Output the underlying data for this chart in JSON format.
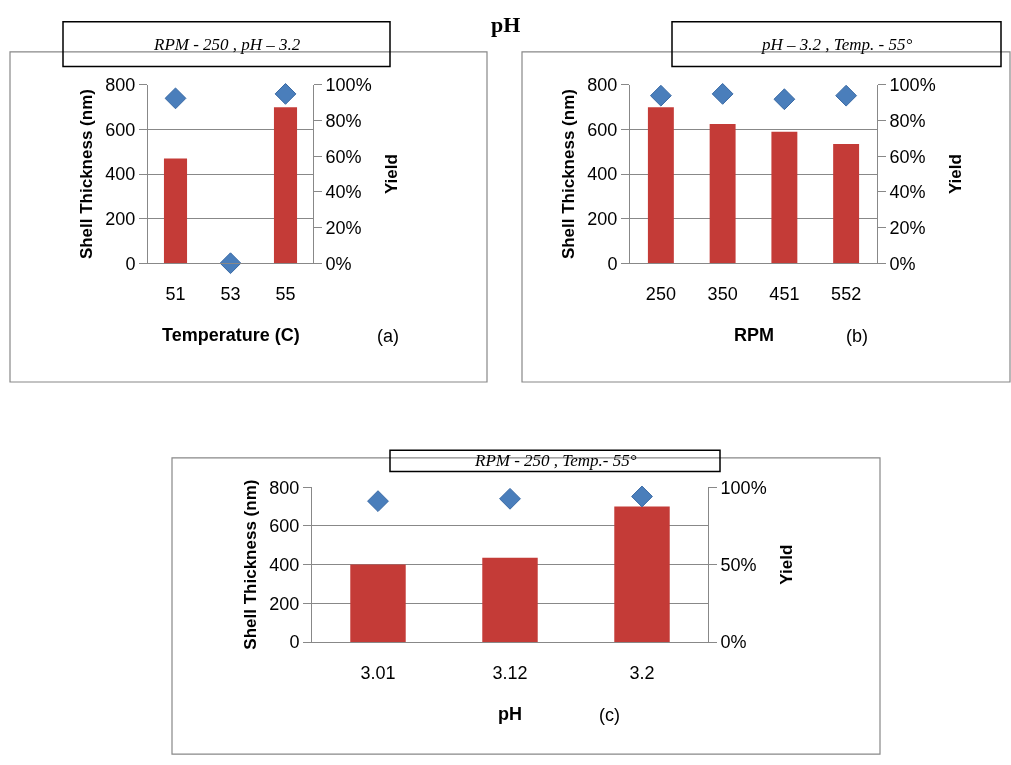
{
  "chart_data": [
    {
      "type": "bar",
      "title": "RPM - 250 , pH – 3.2",
      "xlabel": "Temperature (C)",
      "ylabel": "Shell Thickness (nm)",
      "y2label": "Yield",
      "annotations": [
        "pH",
        "(a)"
      ],
      "categories": [
        "51",
        "53",
        "55"
      ],
      "series": [
        {
          "color": "#c43b37",
          "values": [
            470,
            0,
            700
          ]
        },
        {
          "type": "scatter",
          "axis": "y2",
          "color": "#4a7ebb",
          "values": [
            92.5,
            0,
            95
          ]
        }
      ],
      "marker": "diamond",
      "ylim": [
        0,
        800
      ],
      "yticks": [
        0,
        200,
        400,
        600,
        800
      ],
      "y2lim": [
        0,
        100
      ],
      "y2ticks": [
        {
          "value": 0,
          "label": "0%"
        },
        {
          "value": 20,
          "label": "20%"
        },
        {
          "value": 40,
          "label": "40%"
        },
        {
          "value": 60,
          "label": "60%"
        },
        {
          "value": 80,
          "label": "80%"
        },
        {
          "value": 100,
          "label": "100%"
        }
      ],
      "grid": "y"
    },
    {
      "type": "bar",
      "title": "pH – 3.2 , Temp. - 55°",
      "xlabel": "RPM",
      "ylabel": "Shell Thickness (nm)",
      "y2label": "Yield",
      "annotations": [
        "(b)"
      ],
      "categories": [
        "250",
        "350",
        "451",
        "552"
      ],
      "series": [
        {
          "color": "#c43b37",
          "values": [
            700,
            625,
            590,
            535
          ]
        },
        {
          "type": "scatter",
          "axis": "y2",
          "color": "#4a7ebb",
          "values": [
            94,
            95,
            92,
            94
          ]
        }
      ],
      "marker": "diamond",
      "ylim": [
        0,
        800
      ],
      "yticks": [
        0,
        200,
        400,
        600,
        800
      ],
      "y2lim": [
        0,
        100
      ],
      "y2ticks": [
        {
          "value": 0,
          "label": "0%"
        },
        {
          "value": 20,
          "label": "20%"
        },
        {
          "value": 40,
          "label": "40%"
        },
        {
          "value": 60,
          "label": "60%"
        },
        {
          "value": 80,
          "label": "80%"
        },
        {
          "value": 100,
          "label": "100%"
        }
      ],
      "grid": "y"
    },
    {
      "type": "bar",
      "title": "RPM - 250 , Temp.- 55°",
      "xlabel": "pH",
      "ylabel": "Shell Thickness (nm)",
      "y2label": "Yield",
      "annotations": [
        "(c)"
      ],
      "categories": [
        "3.01",
        "3.12",
        "3.2"
      ],
      "series": [
        {
          "color": "#c43b37",
          "values": [
            400,
            435,
            700
          ]
        },
        {
          "type": "scatter",
          "axis": "y2",
          "color": "#4a7ebb",
          "values": [
            91,
            92.5,
            94
          ]
        }
      ],
      "marker": "diamond",
      "ylim": [
        0,
        800
      ],
      "yticks": [
        0,
        200,
        400,
        600,
        800
      ],
      "y2lim": [
        0,
        100
      ],
      "y2ticks": [
        {
          "value": 0,
          "label": "0%"
        },
        {
          "value": 50,
          "label": "50%"
        },
        {
          "value": 100,
          "label": "100%"
        }
      ],
      "grid": "y"
    }
  ]
}
